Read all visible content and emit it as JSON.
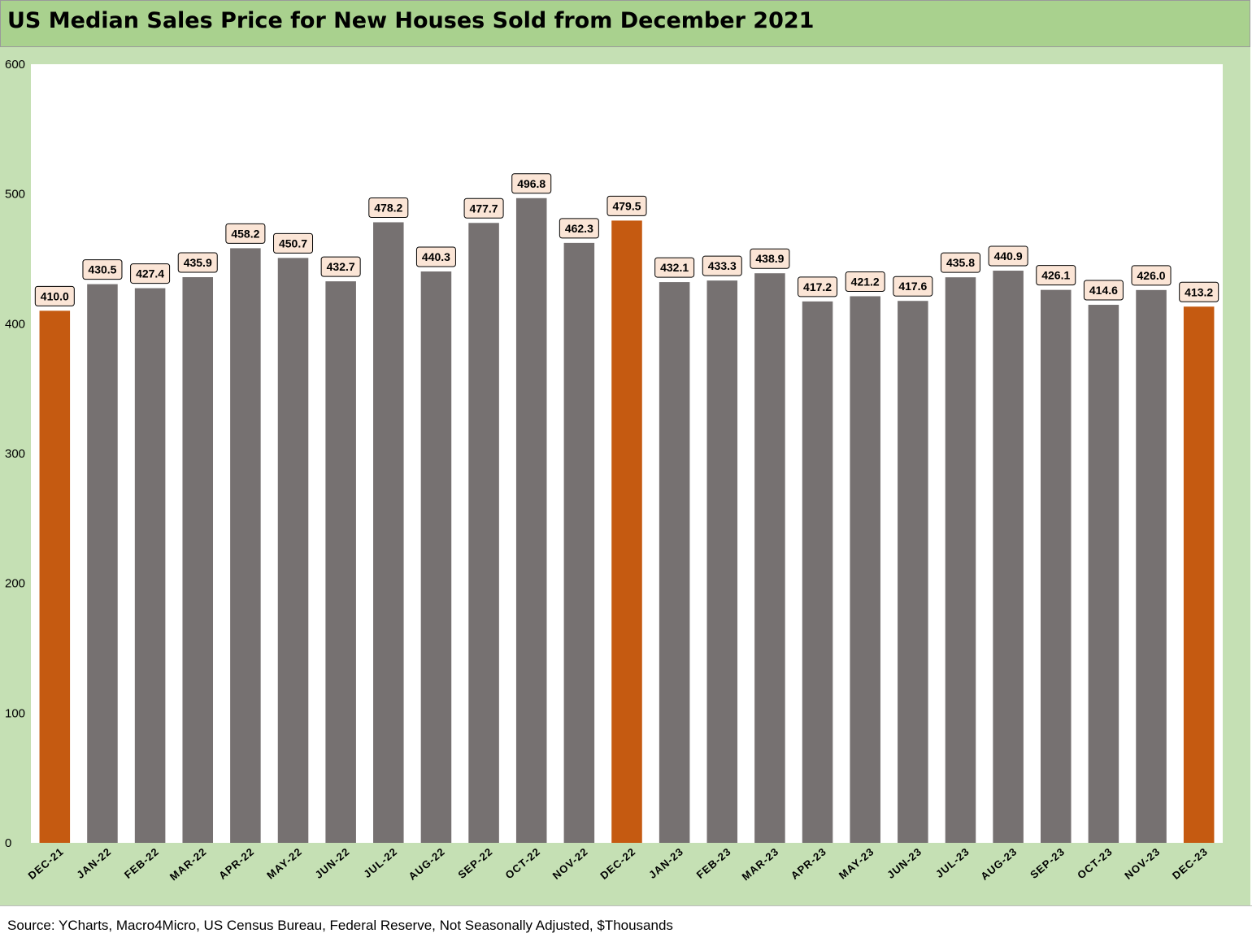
{
  "title": "US Median Sales Price for New Houses Sold from December 2021",
  "source": "Source: YCharts, Macro4Micro, US Census Bureau, Federal Reserve, Not Seasonally Adjusted, $Thousands",
  "colors": {
    "title_bg": "#a9d18e",
    "frame_bg": "#c5e0b4",
    "bar_default": "#767171",
    "bar_highlight": "#c55a11",
    "label_bg": "#fbe5d6"
  },
  "chart_data": {
    "type": "bar",
    "categories": [
      "DEC-21",
      "JAN-22",
      "FEB-22",
      "MAR-22",
      "APR-22",
      "MAY-22",
      "JUN-22",
      "JUL-22",
      "AUG-22",
      "SEP-22",
      "OCT-22",
      "NOV-22",
      "DEC-22",
      "JAN-23",
      "FEB-23",
      "MAR-23",
      "APR-23",
      "MAY-23",
      "JUN-23",
      "JUL-23",
      "AUG-23",
      "SEP-23",
      "OCT-23",
      "NOV-23",
      "DEC-23"
    ],
    "values": [
      410.0,
      430.5,
      427.4,
      435.9,
      458.2,
      450.7,
      432.7,
      478.2,
      440.3,
      477.7,
      496.8,
      462.3,
      479.5,
      432.1,
      433.3,
      438.9,
      417.2,
      421.2,
      417.6,
      435.8,
      440.9,
      426.1,
      414.6,
      426.0,
      413.2
    ],
    "data_labels": [
      "410.0",
      "430.5",
      "427.4",
      "435.9",
      "458.2",
      "450.7",
      "432.7",
      "478.2",
      "440.3",
      "477.7",
      "496.8",
      "462.3",
      "479.5",
      "432.1",
      "433.3",
      "438.9",
      "417.2",
      "421.2",
      "417.6",
      "435.8",
      "440.9",
      "426.1",
      "414.6",
      "426.0",
      "413.2"
    ],
    "highlighted": [
      "DEC-21",
      "DEC-22",
      "DEC-23"
    ],
    "ylim": [
      0,
      600
    ],
    "yticks": [
      "0",
      "100",
      "200",
      "300",
      "400",
      "500",
      "600"
    ],
    "grid": false,
    "legend": "none",
    "xlabel": "",
    "ylabel": ""
  }
}
